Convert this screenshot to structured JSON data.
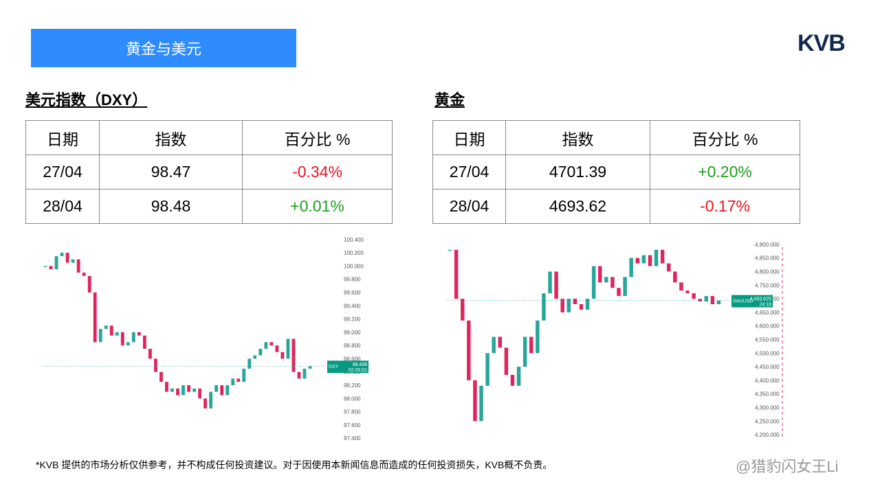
{
  "header": {
    "title": "黄金与美元",
    "logo": "KVB"
  },
  "sections": [
    {
      "title": "美元指数（DXY）",
      "table": {
        "columns": [
          "日期",
          "指数",
          "百分比 %"
        ],
        "rows": [
          [
            "27/04",
            "98.47",
            "-0.34%"
          ],
          [
            "28/04",
            "98.48",
            "+0.01%"
          ]
        ]
      },
      "chart": {
        "type": "candlestick",
        "values": [
          100.0,
          99.95,
          100.15,
          100.2,
          100.05,
          100.1,
          99.9,
          99.85,
          99.6,
          98.85,
          99.05,
          99.1,
          98.95,
          99.0,
          98.8,
          98.85,
          99.0,
          98.95,
          98.75,
          98.6,
          98.4,
          98.25,
          98.1,
          98.15,
          98.05,
          98.2,
          98.1,
          98.15,
          98.0,
          97.85,
          98.1,
          98.2,
          98.05,
          98.2,
          98.3,
          98.25,
          98.45,
          98.6,
          98.65,
          98.75,
          98.85,
          98.8,
          98.7,
          98.6,
          98.9,
          98.4,
          98.3,
          98.45,
          98.488
        ],
        "ylim": [
          97.35,
          100.45
        ],
        "yticks": [
          {
            "value": 97.4,
            "label": "97.400"
          },
          {
            "value": 97.6,
            "label": "97.600"
          },
          {
            "value": 97.8,
            "label": "97.800"
          },
          {
            "value": 98.0,
            "label": "98.000"
          },
          {
            "value": 98.2,
            "label": "98.200"
          },
          {
            "value": 98.4,
            "label": "98.400"
          },
          {
            "value": 98.6,
            "label": "98.600"
          },
          {
            "value": 98.8,
            "label": "98.800"
          },
          {
            "value": 99.0,
            "label": "99.000"
          },
          {
            "value": 99.2,
            "label": "99.200"
          },
          {
            "value": 99.4,
            "label": "99.400"
          },
          {
            "value": 99.6,
            "label": "99.600"
          },
          {
            "value": 99.8,
            "label": "99.800"
          },
          {
            "value": 100.0,
            "label": "100.000"
          },
          {
            "value": 100.2,
            "label": "100.200"
          },
          {
            "value": 100.4,
            "label": "100.400"
          }
        ],
        "tag": {
          "symbol": "DXY",
          "price": "98.488",
          "countdown": "02:25:01"
        }
      }
    },
    {
      "title": "黄金",
      "table": {
        "columns": [
          "日期",
          "指数",
          "百分比 %"
        ],
        "rows": [
          [
            "27/04",
            "4701.39",
            "+0.20%"
          ],
          [
            "28/04",
            "4693.62",
            "-0.17%"
          ]
        ]
      },
      "chart": {
        "type": "candlestick",
        "values": [
          4880,
          4700,
          4620,
          4400,
          4250,
          4380,
          4500,
          4560,
          4520,
          4420,
          4380,
          4450,
          4560,
          4500,
          4620,
          4720,
          4800,
          4700,
          4650,
          4700,
          4680,
          4660,
          4700,
          4820,
          4760,
          4780,
          4740,
          4710,
          4780,
          4850,
          4830,
          4860,
          4820,
          4880,
          4830,
          4800,
          4760,
          4730,
          4720,
          4700,
          4690,
          4710,
          4680,
          4693.625
        ],
        "ylim": [
          4170,
          4930
        ],
        "yticks": [
          {
            "value": 4200,
            "label": "4,200.000"
          },
          {
            "value": 4250,
            "label": "4,250.000"
          },
          {
            "value": 4300,
            "label": "4,300.000"
          },
          {
            "value": 4350,
            "label": "4,350.000"
          },
          {
            "value": 4400,
            "label": "4,400.000"
          },
          {
            "value": 4450,
            "label": "4,450.000"
          },
          {
            "value": 4500,
            "label": "4,500.000"
          },
          {
            "value": 4550,
            "label": "4,550.000"
          },
          {
            "value": 4600,
            "label": "4,600.000"
          },
          {
            "value": 4650,
            "label": "4,650.000"
          },
          {
            "value": 4700,
            "label": "4,700.000"
          },
          {
            "value": 4750,
            "label": "4,750.000"
          },
          {
            "value": 4800,
            "label": "4,800.000"
          },
          {
            "value": 4850,
            "label": "4,850.000"
          },
          {
            "value": 4900,
            "label": "4,900.000"
          }
        ],
        "tag": {
          "symbol": "XAUUSD",
          "price": "4,693.625",
          "countdown": "24:16"
        }
      }
    }
  ],
  "footer": "*KVB 提供的市场分析仅供参考，并不构成任何投资建议。对于因使用本新闻信息而造成的任何投资损失，KVB概不负责。",
  "watermark": "@猎豹闪女王Li"
}
